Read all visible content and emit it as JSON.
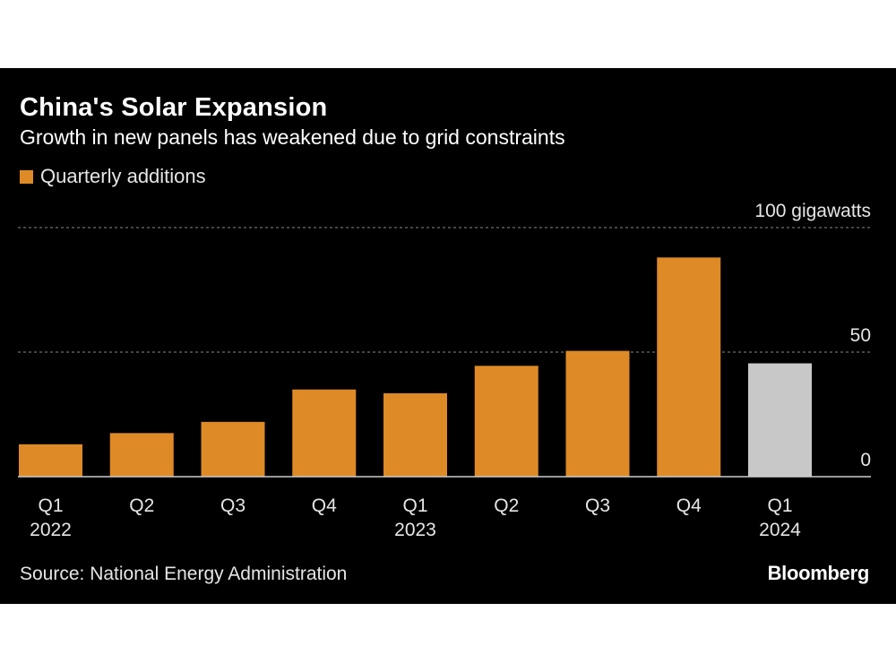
{
  "header": {
    "title": "China's Solar Expansion",
    "subtitle": "Growth in new panels has weakened due to grid constraints"
  },
  "legend": {
    "label": "Quarterly additions",
    "color": "#dd8a27"
  },
  "footer": {
    "source": "Source: National Energy Administration",
    "logo": "Bloomberg"
  },
  "colors": {
    "background": "#000000",
    "bar": "#dd8a27",
    "bar_highlight": "#c8c8c8",
    "grid": "#8a8a8a",
    "axis": "#cccccc"
  },
  "chart_data": {
    "type": "bar",
    "categories": [
      "Q1",
      "Q2",
      "Q3",
      "Q4",
      "Q1",
      "Q2",
      "Q3",
      "Q4",
      "Q1"
    ],
    "years": [
      "2022",
      "",
      "",
      "",
      "2023",
      "",
      "",
      "",
      "2024"
    ],
    "values": [
      13,
      17.5,
      22,
      35,
      33.5,
      44.5,
      50.5,
      88,
      45.5
    ],
    "highlight_index": 8,
    "ylim": [
      0,
      100
    ],
    "yticks": [
      0,
      50,
      100
    ],
    "ytick_labels": [
      "0",
      "50",
      "100 gigawatts"
    ],
    "grid": true,
    "legend_position": "top-left"
  }
}
